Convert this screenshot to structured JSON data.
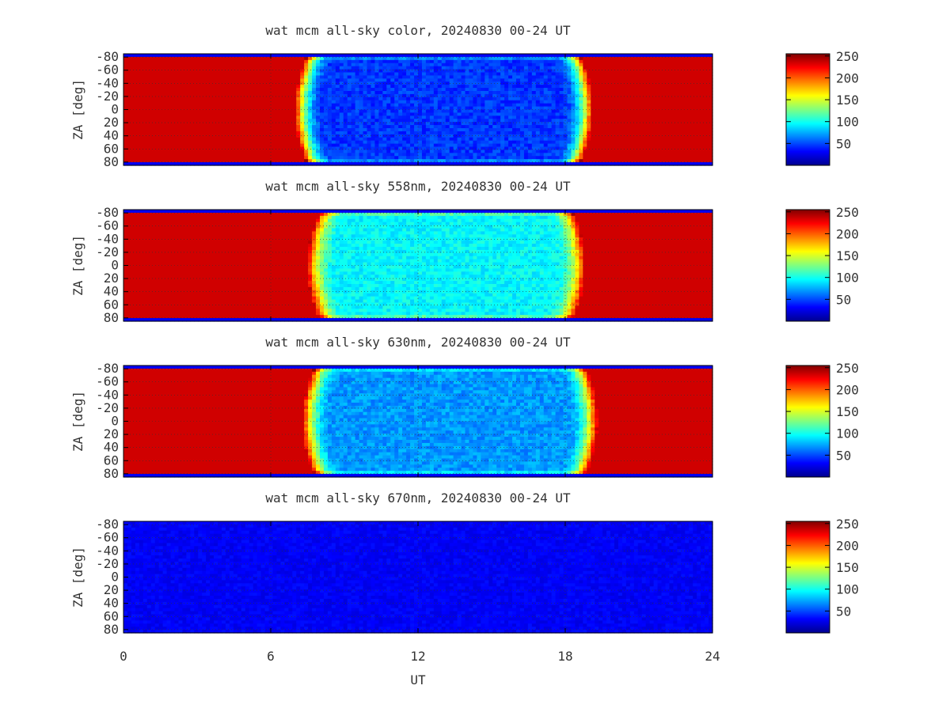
{
  "chart_data": [
    {
      "type": "heatmap",
      "title": "wat mcm all-sky color, 20240830 00-24 UT",
      "ylabel": "ZA [deg]",
      "x_range": [
        0,
        24
      ],
      "y_range": [
        -85,
        85
      ],
      "y_ticks": [
        "-80",
        "-60",
        "-40",
        "-20",
        "0",
        "20",
        "40",
        "60",
        "80"
      ],
      "colorbar": {
        "range": [
          0,
          255
        ],
        "ticks": [
          "50",
          "100",
          "150",
          "200",
          "250"
        ]
      },
      "grid": true,
      "profile": {
        "night_start": 7.5,
        "night_end": 18.6,
        "saturated_value": 235,
        "night_level": 45
      }
    },
    {
      "type": "heatmap",
      "title": "wat mcm all-sky 558nm, 20240830 00-24 UT",
      "ylabel": "ZA [deg]",
      "x_range": [
        0,
        24
      ],
      "y_range": [
        -85,
        85
      ],
      "y_ticks": [
        "-80",
        "-60",
        "-40",
        "-20",
        "0",
        "20",
        "40",
        "60",
        "80"
      ],
      "colorbar": {
        "range": [
          0,
          255
        ],
        "ticks": [
          "50",
          "100",
          "150",
          "200",
          "250"
        ]
      },
      "grid": true,
      "profile": {
        "night_start": 8.0,
        "night_end": 18.3,
        "saturated_value": 235,
        "night_level": 95
      }
    },
    {
      "type": "heatmap",
      "title": "wat mcm all-sky 630nm, 20240830 00-24 UT",
      "ylabel": "ZA [deg]",
      "x_range": [
        0,
        24
      ],
      "y_range": [
        -85,
        85
      ],
      "y_ticks": [
        "-80",
        "-60",
        "-40",
        "-20",
        "0",
        "20",
        "40",
        "60",
        "80"
      ],
      "colorbar": {
        "range": [
          0,
          255
        ],
        "ticks": [
          "50",
          "100",
          "150",
          "200",
          "250"
        ]
      },
      "grid": true,
      "profile": {
        "night_start": 7.8,
        "night_end": 18.8,
        "saturated_value": 235,
        "night_level": 70
      }
    },
    {
      "type": "heatmap",
      "title": "wat mcm all-sky 670nm, 20240830 00-24 UT",
      "ylabel": "ZA [deg]",
      "x_range": [
        0,
        24
      ],
      "y_range": [
        -85,
        85
      ],
      "y_ticks": [
        "-80",
        "-60",
        "-40",
        "-20",
        "0",
        "20",
        "40",
        "60",
        "80"
      ],
      "colorbar": {
        "range": [
          0,
          255
        ],
        "ticks": [
          "50",
          "100",
          "150",
          "200",
          "250"
        ]
      },
      "grid": true,
      "profile": {
        "uniform_value": 30
      }
    }
  ],
  "x_axis": {
    "label": "UT",
    "ticks": [
      "0",
      "6",
      "12",
      "18",
      "24"
    ]
  }
}
